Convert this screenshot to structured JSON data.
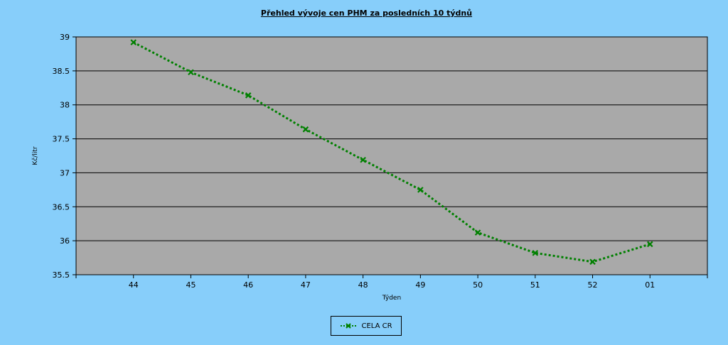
{
  "chart_data": {
    "type": "line",
    "title": "Přehled vývoje cen PHM za posledních 10 týdnů",
    "xlabel": "Týden",
    "ylabel": "Kč/litr",
    "categories": [
      "44",
      "45",
      "46",
      "47",
      "48",
      "49",
      "50",
      "51",
      "52",
      "01"
    ],
    "yticks": [
      "35.5",
      "36",
      "36.5",
      "37",
      "37.5",
      "38",
      "38.5",
      "39"
    ],
    "ylim": [
      35.5,
      39
    ],
    "grid": true,
    "legend_position": "bottom",
    "series": [
      {
        "name": "CELA CR",
        "color": "#008000",
        "values": [
          38.92,
          38.48,
          38.14,
          37.64,
          37.19,
          36.75,
          36.12,
          35.82,
          35.69,
          35.95
        ]
      }
    ]
  },
  "colors": {
    "background": "#87cefa",
    "plot_area": "#a9a9a9",
    "series": "#008000"
  }
}
